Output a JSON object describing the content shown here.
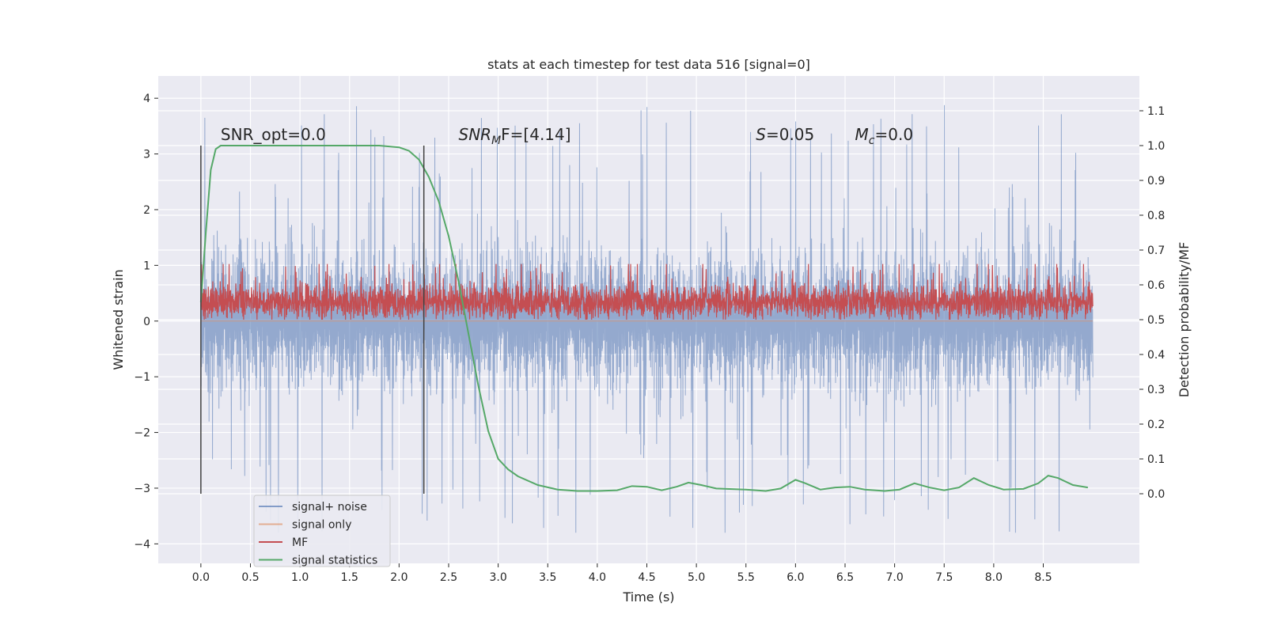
{
  "chart_data": {
    "type": "line",
    "title": "stats at each timestep for test data 516 [signal=0]",
    "xlabel": "Time (s)",
    "ylabel": "Whitened strain",
    "y2label": "Detection probability/MF",
    "xlim": [
      -0.43,
      9.47
    ],
    "ylim": [
      -4.35,
      4.4
    ],
    "y2lim": [
      -0.2,
      1.2
    ],
    "xticks": [
      "0.0",
      "0.5",
      "1.0",
      "1.5",
      "2.0",
      "2.5",
      "3.0",
      "3.5",
      "4.0",
      "4.5",
      "5.0",
      "5.5",
      "6.0",
      "6.5",
      "7.0",
      "7.5",
      "8.0",
      "8.5"
    ],
    "yticks": [
      "−4",
      "−3",
      "−2",
      "−1",
      "0",
      "1",
      "2",
      "3",
      "4"
    ],
    "y2ticks": [
      "0.0",
      "0.1",
      "0.2",
      "0.3",
      "0.4",
      "0.5",
      "0.6",
      "0.7",
      "0.8",
      "0.9",
      "1.0",
      "1.1"
    ],
    "grid": true,
    "legend_position": "lower-left",
    "colors": {
      "background": "#eaeaf2",
      "noise": "#4c72b0",
      "signal": "#dd8452",
      "mf": "#c44e52",
      "stats": "#55a868",
      "vline": "#404040"
    },
    "series": [
      {
        "name": "signal+ noise",
        "axis": "left",
        "summary": {
          "x_range": [
            0.0,
            9.0
          ],
          "core_band": [
            -1.3,
            1.3
          ],
          "max_peak": 4.0,
          "min_peak": -3.8
        }
      },
      {
        "name": "signal only",
        "axis": "left",
        "summary": {
          "x_range": [
            0.0,
            9.0
          ],
          "values": "approximately 0"
        }
      },
      {
        "name": "MF",
        "axis": "right",
        "summary": {
          "x_range": [
            0.0,
            9.0
          ],
          "core_band": [
            0.5,
            0.6
          ],
          "max_peak": 0.66
        }
      },
      {
        "name": "signal statistics",
        "axis": "right",
        "x": [
          0.0,
          0.05,
          0.1,
          0.15,
          0.2,
          0.3,
          0.5,
          1.0,
          1.5,
          1.8,
          2.0,
          2.1,
          2.2,
          2.3,
          2.4,
          2.5,
          2.6,
          2.7,
          2.8,
          2.9,
          3.0,
          3.1,
          3.2,
          3.4,
          3.6,
          3.8,
          4.0,
          4.2,
          4.35,
          4.5,
          4.65,
          4.8,
          4.92,
          5.05,
          5.2,
          5.5,
          5.7,
          5.85,
          6.0,
          6.1,
          6.25,
          6.4,
          6.55,
          6.7,
          6.9,
          7.05,
          7.2,
          7.35,
          7.5,
          7.65,
          7.8,
          7.95,
          8.1,
          8.3,
          8.45,
          8.55,
          8.65,
          8.8,
          8.95
        ],
        "y": [
          0.55,
          0.75,
          0.93,
          0.99,
          1.0,
          1.0,
          1.0,
          1.0,
          1.0,
          1.0,
          0.995,
          0.985,
          0.96,
          0.91,
          0.84,
          0.74,
          0.61,
          0.46,
          0.31,
          0.18,
          0.1,
          0.07,
          0.05,
          0.025,
          0.012,
          0.008,
          0.008,
          0.01,
          0.022,
          0.02,
          0.01,
          0.02,
          0.032,
          0.025,
          0.015,
          0.012,
          0.008,
          0.015,
          0.04,
          0.03,
          0.012,
          0.018,
          0.02,
          0.012,
          0.008,
          0.012,
          0.03,
          0.018,
          0.01,
          0.018,
          0.045,
          0.025,
          0.012,
          0.014,
          0.03,
          0.052,
          0.045,
          0.025,
          0.018
        ]
      }
    ],
    "vertical_lines": [
      {
        "x": 0.0,
        "ymin": -3.1,
        "ymax": 3.15
      },
      {
        "x": 2.25,
        "ymin": -3.1,
        "ymax": 3.15
      }
    ],
    "annotations": [
      {
        "text": "SNR_opt=0.0",
        "x": 0.2,
        "y": 3.25
      },
      {
        "text": "SNR",
        "sub": "M",
        "rest": "F=[4.14]",
        "x": 2.6,
        "y": 3.25,
        "italic": true
      },
      {
        "text": "S",
        "sub": "",
        "rest": "=0.05",
        "x": 5.6,
        "y": 3.25,
        "italic": true
      },
      {
        "text": "M",
        "sub": "c",
        "rest": "=0.0",
        "x": 6.6,
        "y": 3.25,
        "italic": true
      }
    ]
  }
}
